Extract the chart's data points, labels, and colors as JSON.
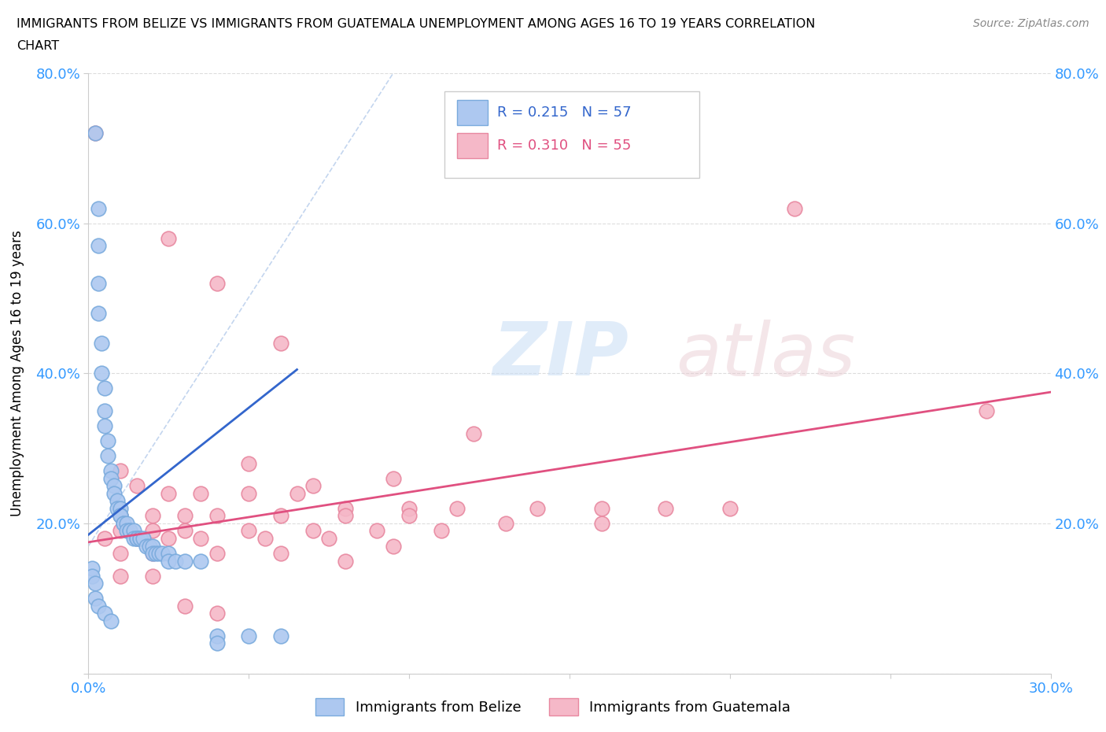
{
  "title_line1": "IMMIGRANTS FROM BELIZE VS IMMIGRANTS FROM GUATEMALA UNEMPLOYMENT AMONG AGES 16 TO 19 YEARS CORRELATION",
  "title_line2": "CHART",
  "source": "Source: ZipAtlas.com",
  "ylabel": "Unemployment Among Ages 16 to 19 years",
  "xlim": [
    0.0,
    0.3
  ],
  "ylim": [
    0.0,
    0.8
  ],
  "xticks": [
    0.0,
    0.05,
    0.1,
    0.15,
    0.2,
    0.25,
    0.3
  ],
  "yticks": [
    0.0,
    0.2,
    0.4,
    0.6,
    0.8
  ],
  "belize_color": "#adc8f0",
  "belize_edge_color": "#7aabdd",
  "guatemala_color": "#f5b8c8",
  "guatemala_edge_color": "#e888a0",
  "belize_line_color": "#3366cc",
  "guatemala_line_color": "#e05080",
  "dashed_line_color": "#aac4e8",
  "belize_R": 0.215,
  "belize_N": 57,
  "guatemala_R": 0.31,
  "guatemala_N": 55,
  "background_color": "#ffffff",
  "grid_color": "#dddddd",
  "belize_points": [
    [
      0.002,
      0.72
    ],
    [
      0.003,
      0.62
    ],
    [
      0.003,
      0.57
    ],
    [
      0.003,
      0.52
    ],
    [
      0.003,
      0.48
    ],
    [
      0.004,
      0.44
    ],
    [
      0.004,
      0.4
    ],
    [
      0.005,
      0.38
    ],
    [
      0.005,
      0.35
    ],
    [
      0.005,
      0.33
    ],
    [
      0.006,
      0.31
    ],
    [
      0.006,
      0.29
    ],
    [
      0.007,
      0.27
    ],
    [
      0.007,
      0.26
    ],
    [
      0.008,
      0.25
    ],
    [
      0.008,
      0.24
    ],
    [
      0.009,
      0.23
    ],
    [
      0.009,
      0.22
    ],
    [
      0.01,
      0.22
    ],
    [
      0.01,
      0.21
    ],
    [
      0.01,
      0.21
    ],
    [
      0.011,
      0.2
    ],
    [
      0.011,
      0.2
    ],
    [
      0.012,
      0.2
    ],
    [
      0.012,
      0.19
    ],
    [
      0.013,
      0.19
    ],
    [
      0.013,
      0.19
    ],
    [
      0.014,
      0.19
    ],
    [
      0.014,
      0.18
    ],
    [
      0.015,
      0.18
    ],
    [
      0.015,
      0.18
    ],
    [
      0.016,
      0.18
    ],
    [
      0.016,
      0.18
    ],
    [
      0.017,
      0.18
    ],
    [
      0.018,
      0.17
    ],
    [
      0.019,
      0.17
    ],
    [
      0.02,
      0.17
    ],
    [
      0.02,
      0.16
    ],
    [
      0.021,
      0.16
    ],
    [
      0.022,
      0.16
    ],
    [
      0.023,
      0.16
    ],
    [
      0.025,
      0.16
    ],
    [
      0.025,
      0.15
    ],
    [
      0.027,
      0.15
    ],
    [
      0.03,
      0.15
    ],
    [
      0.035,
      0.15
    ],
    [
      0.04,
      0.05
    ],
    [
      0.04,
      0.04
    ],
    [
      0.05,
      0.05
    ],
    [
      0.06,
      0.05
    ],
    [
      0.001,
      0.14
    ],
    [
      0.001,
      0.13
    ],
    [
      0.002,
      0.12
    ],
    [
      0.002,
      0.1
    ],
    [
      0.003,
      0.09
    ],
    [
      0.005,
      0.08
    ],
    [
      0.007,
      0.07
    ]
  ],
  "guatemala_points": [
    [
      0.002,
      0.72
    ],
    [
      0.025,
      0.58
    ],
    [
      0.04,
      0.52
    ],
    [
      0.06,
      0.44
    ],
    [
      0.12,
      0.32
    ],
    [
      0.01,
      0.27
    ],
    [
      0.05,
      0.28
    ],
    [
      0.07,
      0.25
    ],
    [
      0.095,
      0.26
    ],
    [
      0.015,
      0.25
    ],
    [
      0.025,
      0.24
    ],
    [
      0.035,
      0.24
    ],
    [
      0.05,
      0.24
    ],
    [
      0.065,
      0.24
    ],
    [
      0.08,
      0.22
    ],
    [
      0.1,
      0.22
    ],
    [
      0.115,
      0.22
    ],
    [
      0.14,
      0.22
    ],
    [
      0.16,
      0.22
    ],
    [
      0.18,
      0.22
    ],
    [
      0.2,
      0.22
    ],
    [
      0.01,
      0.21
    ],
    [
      0.02,
      0.21
    ],
    [
      0.03,
      0.21
    ],
    [
      0.04,
      0.21
    ],
    [
      0.06,
      0.21
    ],
    [
      0.08,
      0.21
    ],
    [
      0.1,
      0.21
    ],
    [
      0.13,
      0.2
    ],
    [
      0.16,
      0.2
    ],
    [
      0.01,
      0.19
    ],
    [
      0.02,
      0.19
    ],
    [
      0.03,
      0.19
    ],
    [
      0.05,
      0.19
    ],
    [
      0.07,
      0.19
    ],
    [
      0.09,
      0.19
    ],
    [
      0.11,
      0.19
    ],
    [
      0.005,
      0.18
    ],
    [
      0.015,
      0.18
    ],
    [
      0.025,
      0.18
    ],
    [
      0.035,
      0.18
    ],
    [
      0.055,
      0.18
    ],
    [
      0.075,
      0.18
    ],
    [
      0.095,
      0.17
    ],
    [
      0.01,
      0.16
    ],
    [
      0.02,
      0.16
    ],
    [
      0.04,
      0.16
    ],
    [
      0.06,
      0.16
    ],
    [
      0.08,
      0.15
    ],
    [
      0.01,
      0.13
    ],
    [
      0.02,
      0.13
    ],
    [
      0.03,
      0.09
    ],
    [
      0.04,
      0.08
    ],
    [
      0.28,
      0.35
    ],
    [
      0.22,
      0.62
    ]
  ]
}
